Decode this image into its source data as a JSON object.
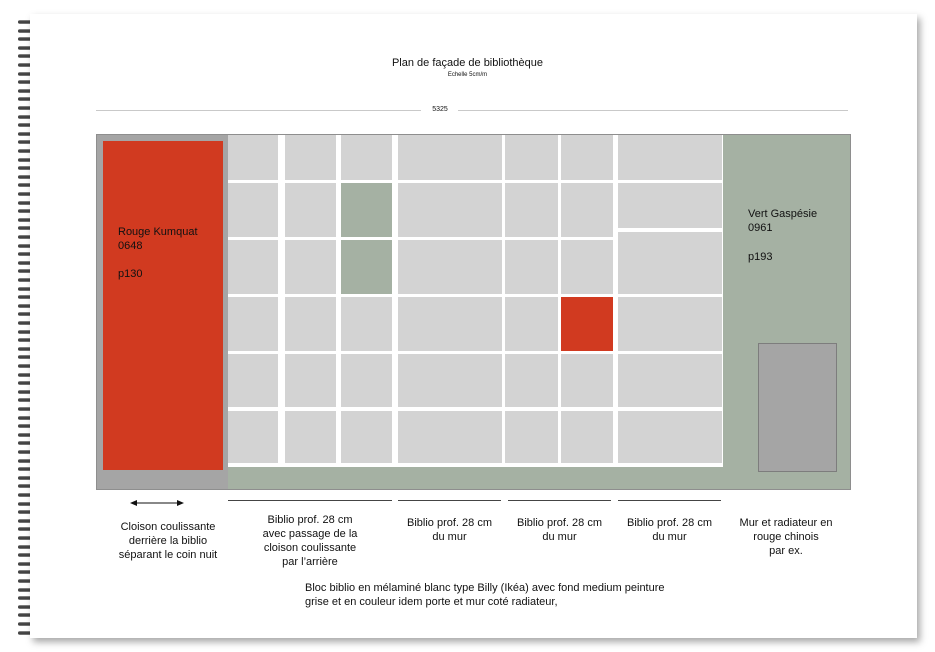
{
  "title": "Plan de façade de bibliothèque",
  "scale": "Echelle 5cm/m",
  "overall_width": "5325",
  "colors": {
    "rouge_kumquat": "#d13a20",
    "vert_gaspesie": "#a5b1a3",
    "shelf_gray": "#d3d3d3",
    "radiator_gray": "#a5a5a5",
    "frame_gray": "#8e8e8e"
  },
  "door": {
    "name": "Rouge Kumquat",
    "code": "0648",
    "page": "p130"
  },
  "wall": {
    "name": "Vert Gaspésie",
    "code": "0961",
    "page": "p193"
  },
  "captions": {
    "door": [
      "Cloison coulissante",
      "derrière la biblio",
      "séparant le coin nuit"
    ],
    "section1": [
      "Biblio prof. 28 cm",
      "avec passage de la",
      "cloison coulissante",
      "par l’arrière"
    ],
    "section2": [
      "Biblio prof. 28 cm",
      "du mur"
    ],
    "section3": [
      "Biblio prof. 28 cm",
      "du mur"
    ],
    "section4": [
      "Biblio prof. 28 cm",
      "du mur"
    ],
    "wall": [
      "Mur et radiateur en",
      "rouge chinois",
      "par ex."
    ]
  },
  "note": [
    "Bloc biblio en mélaminé blanc type Billy (Ikéa) avec fond medium peinture",
    "grise et en couleur idem porte et mur coté radiateur,"
  ]
}
